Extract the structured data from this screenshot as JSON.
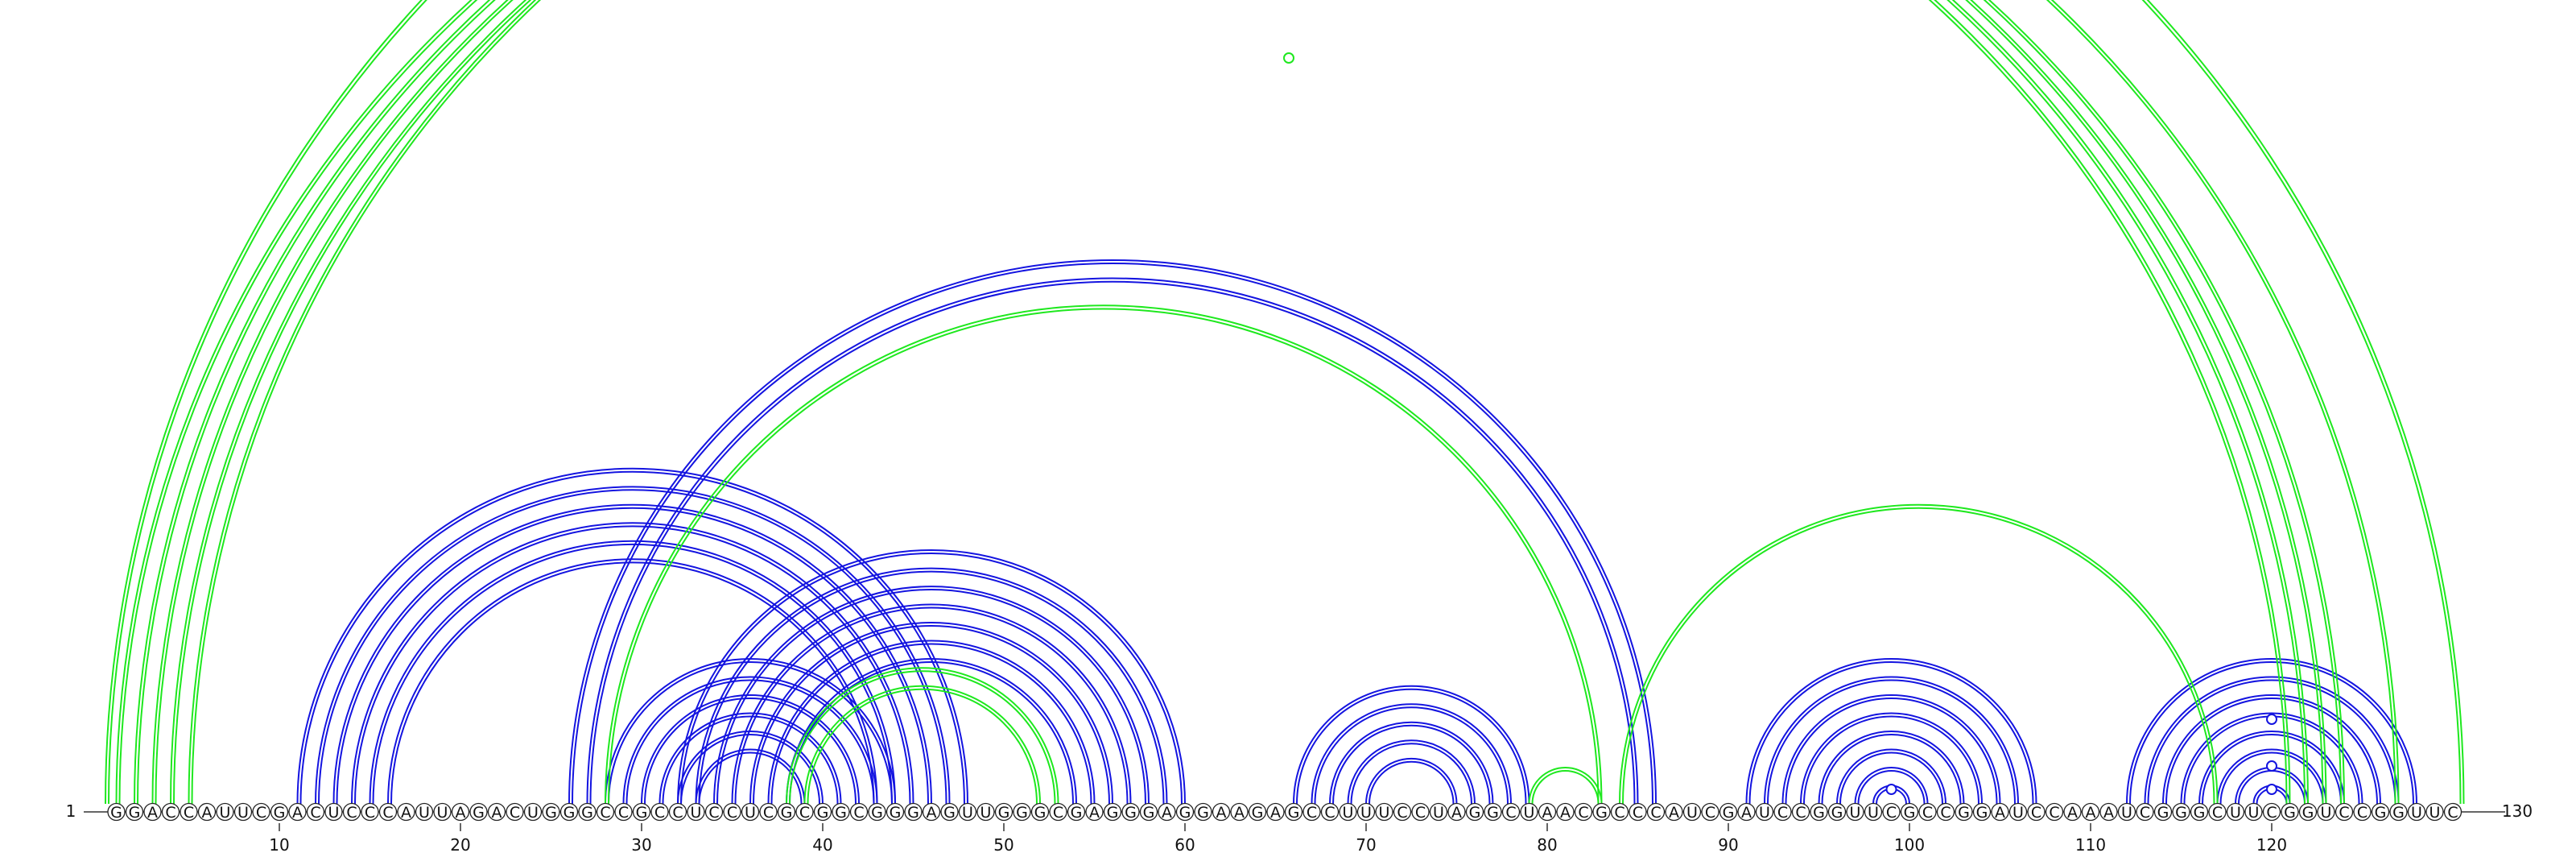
{
  "sequence": "GGACCAUUCGACUCCCAUUAGACUGGGCCGCCUCCUCGCGGCGGGAGUUGGGCGAGGGAGGAAGAGCCUUUCCUAGGCUAACGCCCAUCGAUCCGGUUCGCCGGAUCCAAAUCGGGCUUCGGUCCGGUUC",
  "start_label": "1",
  "end_label": "130",
  "ticks": [
    {
      "pos": 10,
      "label": "10"
    },
    {
      "pos": 20,
      "label": "20"
    },
    {
      "pos": 30,
      "label": "30"
    },
    {
      "pos": 40,
      "label": "40"
    },
    {
      "pos": 50,
      "label": "50"
    },
    {
      "pos": 60,
      "label": "60"
    },
    {
      "pos": 70,
      "label": "70"
    },
    {
      "pos": 80,
      "label": "80"
    },
    {
      "pos": 90,
      "label": "90"
    },
    {
      "pos": 100,
      "label": "100"
    },
    {
      "pos": 110,
      "label": "110"
    },
    {
      "pos": 120,
      "label": "120"
    }
  ],
  "colors": {
    "blue": "#1414e0",
    "green": "#1ee81e",
    "nucleotide_stroke": "#222222",
    "nucleotide_fill": "#ffffff"
  },
  "arc_sets": [
    {
      "name": "blue-helix-11-48",
      "color": "blue",
      "pairs": [
        [
          11,
          48
        ],
        [
          12,
          47
        ],
        [
          13,
          46
        ],
        [
          14,
          45
        ],
        [
          15,
          44
        ],
        [
          16,
          43
        ]
      ]
    },
    {
      "name": "blue-helix-26-86",
      "color": "blue",
      "pairs": [
        [
          26,
          86
        ],
        [
          27,
          85
        ]
      ]
    },
    {
      "name": "blue-helix-28-44",
      "color": "blue",
      "pairs": [
        [
          28,
          44
        ],
        [
          29,
          43
        ],
        [
          30,
          42
        ],
        [
          31,
          41
        ],
        [
          32,
          40
        ],
        [
          33,
          39
        ]
      ]
    },
    {
      "name": "blue-helix-32-60",
      "color": "blue",
      "pairs": [
        [
          32,
          60
        ],
        [
          33,
          59
        ],
        [
          34,
          58
        ],
        [
          35,
          57
        ],
        [
          36,
          56
        ],
        [
          37,
          55
        ],
        [
          38,
          54
        ]
      ]
    },
    {
      "name": "blue-helix-66-79",
      "color": "blue",
      "pairs": [
        [
          66,
          79
        ],
        [
          67,
          78
        ],
        [
          68,
          77
        ],
        [
          69,
          76
        ],
        [
          70,
          75
        ]
      ]
    },
    {
      "name": "blue-helix-91-107",
      "color": "blue",
      "pairs": [
        [
          91,
          107
        ],
        [
          92,
          106
        ],
        [
          93,
          105
        ],
        [
          94,
          104
        ],
        [
          95,
          103
        ],
        [
          96,
          102
        ],
        [
          97,
          101
        ],
        [
          98,
          100
        ]
      ]
    },
    {
      "name": "blue-helix-112-128",
      "color": "blue",
      "pairs": [
        [
          112,
          128
        ],
        [
          113,
          127
        ],
        [
          114,
          126
        ],
        [
          115,
          125
        ],
        [
          116,
          124
        ],
        [
          117,
          123
        ],
        [
          118,
          122
        ],
        [
          119,
          121
        ]
      ]
    },
    {
      "name": "green-outer-helix",
      "color": "green",
      "pairs": [
        [
          1,
          121
        ],
        [
          2,
          122
        ],
        [
          3,
          123
        ],
        [
          4,
          124
        ],
        [
          5,
          127
        ],
        [
          0.4,
          130.6
        ]
      ]
    },
    {
      "name": "green-helix-28-83",
      "color": "green",
      "pairs": [
        [
          28,
          83
        ]
      ]
    },
    {
      "name": "green-helix-38-53",
      "color": "green",
      "pairs": [
        [
          38,
          53
        ],
        [
          39,
          52
        ]
      ]
    },
    {
      "name": "green-helix-84-117",
      "color": "green",
      "pairs": [
        [
          84,
          117
        ]
      ]
    },
    {
      "name": "green-helix-79-83",
      "color": "green",
      "pairs": [
        [
          79,
          83
        ]
      ]
    }
  ],
  "loop_markers": [
    {
      "pos": 65.5,
      "color": "green",
      "label_pos": "top"
    },
    {
      "pos": 99,
      "color": "blue"
    },
    {
      "pos": 120,
      "color": "blue"
    },
    {
      "pos": 120,
      "color": "blue",
      "upper": true
    },
    {
      "pos": 120,
      "color": "blue",
      "upper2": true
    }
  ]
}
